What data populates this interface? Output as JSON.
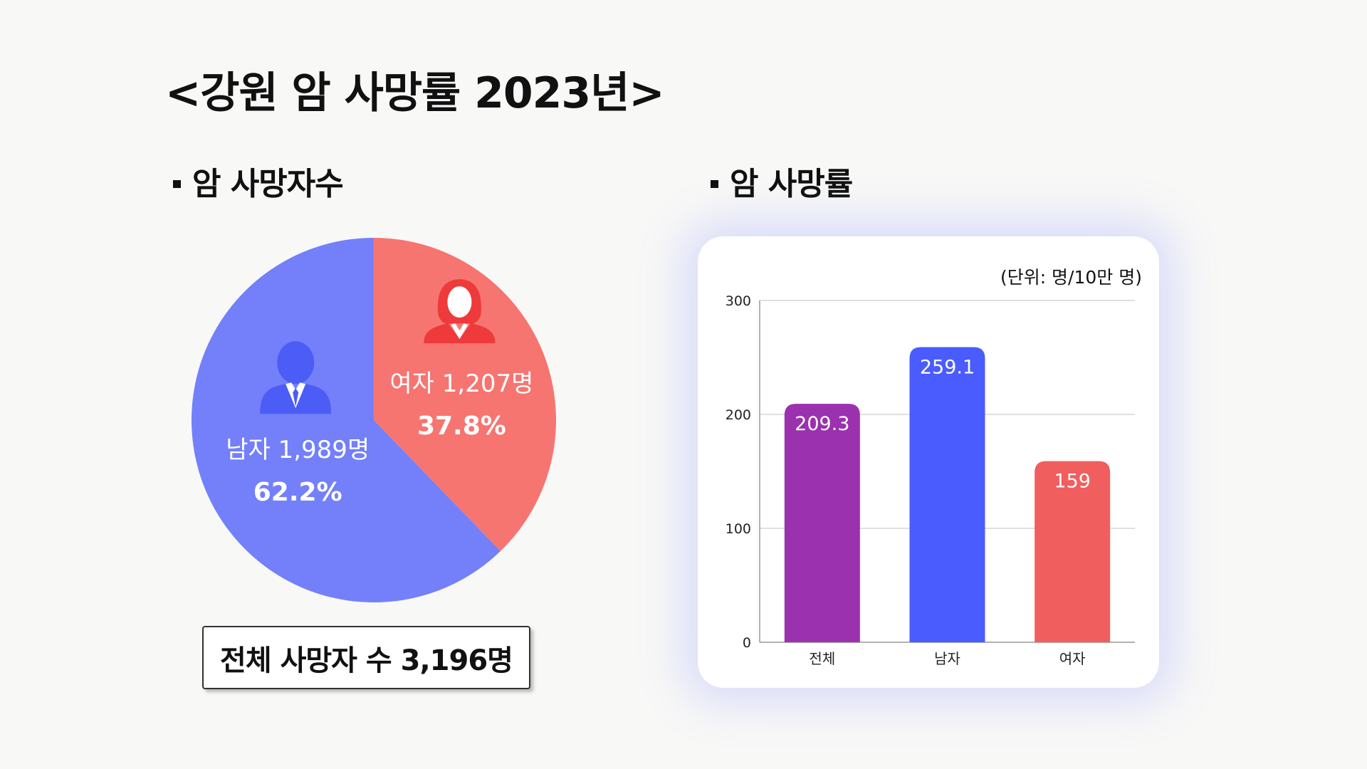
{
  "title": "<강원 암 사망률 2023년>",
  "sections": {
    "deaths_heading": "암 사망자수",
    "rate_heading": "암 사망률"
  },
  "total_label": "전체 사망자 수 3,196명",
  "colors": {
    "male_slice": "#7380fa",
    "female_slice": "#f67571",
    "male_icon": "#4c5cf6",
    "female_icon": "#ee3a3a",
    "bar_total": "#9b31ae",
    "bar_male": "#4a5cfd",
    "bar_female": "#f15e5e"
  },
  "icons": {
    "male": "man-person-icon",
    "female": "woman-person-icon"
  },
  "chart_data": [
    {
      "type": "pie",
      "slices": [
        {
          "name": "여자",
          "value": 1207,
          "percent": 37.8,
          "label": "여자 1,207명",
          "percent_label": "37.8%"
        },
        {
          "name": "남자",
          "value": 1989,
          "percent": 62.2,
          "label": "남자 1,989명",
          "percent_label": "62.2%"
        }
      ]
    },
    {
      "type": "bar",
      "unit_label": "(단위: 명/10만 명)",
      "categories": [
        "전체",
        "남자",
        "여자"
      ],
      "values": [
        209.3,
        259.1,
        159
      ],
      "value_labels": [
        "209.3",
        "259.1",
        "159"
      ],
      "ylim": [
        0,
        300
      ],
      "yticks": [
        0,
        100,
        200,
        300
      ],
      "grid": true,
      "xlabel": "",
      "ylabel": ""
    }
  ]
}
